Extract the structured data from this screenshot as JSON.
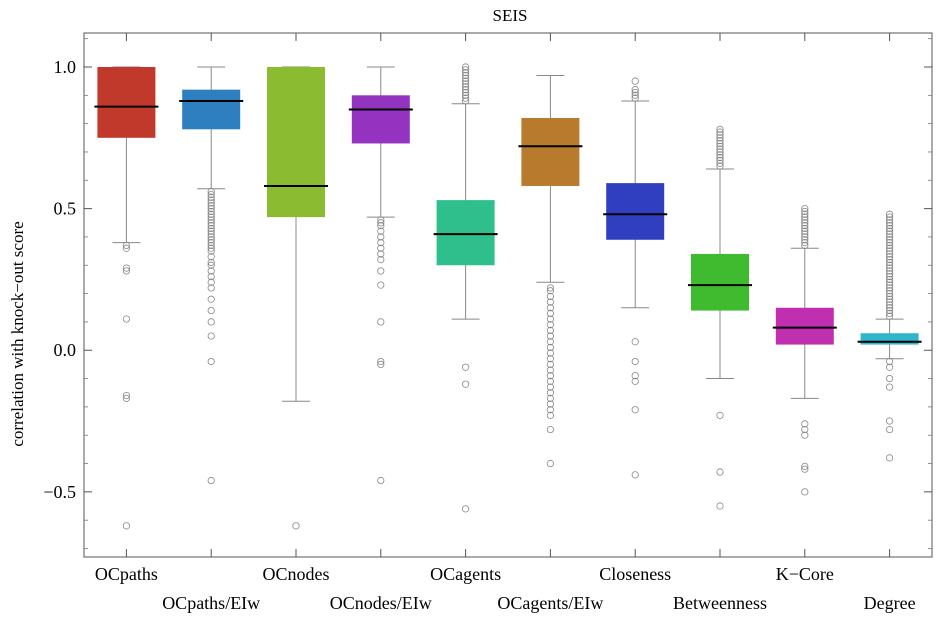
{
  "chart_data": {
    "type": "box",
    "title": "SEIS",
    "xlabel": "",
    "ylabel": "correlation with knock−out score",
    "ylim": [
      -0.73,
      1.12
    ],
    "yticks": [
      -0.5,
      0.0,
      0.5,
      1.0
    ],
    "ytick_labels": [
      "−0.5",
      "0.0",
      "0.5",
      "1.0"
    ],
    "grid": false,
    "categories": [
      "OCpaths",
      "OCpaths/EIw",
      "OCnodes",
      "OCnodes/EIw",
      "OCagents",
      "OCagents/EIw",
      "Closeness",
      "Betweenness",
      "K−Core",
      "Degree"
    ],
    "boxes": [
      {
        "name": "OCpaths",
        "color": "#c0392b",
        "q1": 0.75,
        "median": 0.86,
        "q3": 1.0,
        "whisker_low": 0.38,
        "whisker_high": 1.0,
        "outliers": [
          0.37,
          0.36,
          0.29,
          0.28,
          0.11,
          -0.16,
          -0.17,
          -0.62
        ]
      },
      {
        "name": "OCpaths/EIw",
        "color": "#2e7fc0",
        "q1": 0.78,
        "median": 0.88,
        "q3": 0.92,
        "whisker_low": 0.57,
        "whisker_high": 1.0,
        "outliers": [
          0.56,
          0.55,
          0.54,
          0.53,
          0.52,
          0.51,
          0.5,
          0.49,
          0.48,
          0.47,
          0.46,
          0.45,
          0.44,
          0.43,
          0.42,
          0.41,
          0.4,
          0.39,
          0.38,
          0.37,
          0.36,
          0.35,
          0.33,
          0.31,
          0.3,
          0.28,
          0.26,
          0.24,
          0.22,
          0.18,
          0.14,
          0.1,
          0.05,
          -0.04,
          -0.46
        ]
      },
      {
        "name": "OCnodes",
        "color": "#8bbb30",
        "q1": 0.47,
        "median": 0.58,
        "q3": 1.0,
        "whisker_low": -0.18,
        "whisker_high": 1.0,
        "outliers": [
          -0.62
        ]
      },
      {
        "name": "OCnodes/EIw",
        "color": "#9333c0",
        "q1": 0.73,
        "median": 0.85,
        "q3": 0.9,
        "whisker_low": 0.47,
        "whisker_high": 1.0,
        "outliers": [
          0.46,
          0.45,
          0.44,
          0.42,
          0.4,
          0.38,
          0.36,
          0.34,
          0.32,
          0.28,
          0.23,
          0.1,
          -0.04,
          -0.05,
          -0.46
        ]
      },
      {
        "name": "OCagents",
        "color": "#2fbf8c",
        "q1": 0.3,
        "median": 0.41,
        "q3": 0.53,
        "whisker_low": 0.11,
        "whisker_high": 0.87,
        "outliers": [
          0.88,
          0.89,
          0.9,
          0.91,
          0.92,
          0.93,
          0.94,
          0.95,
          0.96,
          0.97,
          0.98,
          0.99,
          1.0,
          -0.06,
          -0.12,
          -0.56
        ]
      },
      {
        "name": "OCagents/EIw",
        "color": "#b87a2d",
        "q1": 0.58,
        "median": 0.72,
        "q3": 0.82,
        "whisker_low": 0.24,
        "whisker_high": 0.97,
        "outliers": [
          0.22,
          0.21,
          0.19,
          0.17,
          0.15,
          0.13,
          0.11,
          0.09,
          0.07,
          0.05,
          0.03,
          0.01,
          -0.01,
          -0.03,
          -0.05,
          -0.07,
          -0.09,
          -0.11,
          -0.13,
          -0.15,
          -0.17,
          -0.19,
          -0.21,
          -0.23,
          -0.28,
          -0.4
        ]
      },
      {
        "name": "Closeness",
        "color": "#2f3fbf",
        "q1": 0.39,
        "median": 0.48,
        "q3": 0.59,
        "whisker_low": 0.15,
        "whisker_high": 0.88,
        "outliers": [
          0.89,
          0.9,
          0.91,
          0.92,
          0.95,
          0.03,
          -0.04,
          -0.09,
          -0.11,
          -0.21,
          -0.44
        ]
      },
      {
        "name": "Betweenness",
        "color": "#40bb30",
        "q1": 0.14,
        "median": 0.23,
        "q3": 0.34,
        "whisker_low": -0.1,
        "whisker_high": 0.64,
        "outliers": [
          0.65,
          0.66,
          0.67,
          0.68,
          0.69,
          0.7,
          0.71,
          0.72,
          0.73,
          0.74,
          0.75,
          0.76,
          0.77,
          0.78,
          -0.23,
          -0.43,
          -0.55
        ]
      },
      {
        "name": "K−Core",
        "color": "#c02fb0",
        "q1": 0.02,
        "median": 0.08,
        "q3": 0.15,
        "whisker_low": -0.17,
        "whisker_high": 0.36,
        "outliers": [
          0.37,
          0.38,
          0.39,
          0.4,
          0.41,
          0.42,
          0.43,
          0.44,
          0.45,
          0.46,
          0.47,
          0.48,
          0.49,
          0.5,
          -0.26,
          -0.28,
          -0.3,
          -0.41,
          -0.42,
          -0.5
        ]
      },
      {
        "name": "Degree",
        "color": "#2fb5cc",
        "q1": 0.02,
        "median": 0.03,
        "q3": 0.06,
        "whisker_low": -0.03,
        "whisker_high": 0.11,
        "outliers": [
          0.12,
          0.13,
          0.14,
          0.15,
          0.16,
          0.17,
          0.18,
          0.19,
          0.2,
          0.21,
          0.22,
          0.23,
          0.24,
          0.25,
          0.26,
          0.27,
          0.28,
          0.29,
          0.3,
          0.31,
          0.32,
          0.33,
          0.34,
          0.35,
          0.36,
          0.37,
          0.38,
          0.39,
          0.4,
          0.41,
          0.42,
          0.43,
          0.44,
          0.45,
          0.46,
          0.47,
          0.48,
          -0.04,
          -0.06,
          -0.1,
          -0.13,
          -0.25,
          -0.28,
          -0.38
        ]
      }
    ]
  }
}
